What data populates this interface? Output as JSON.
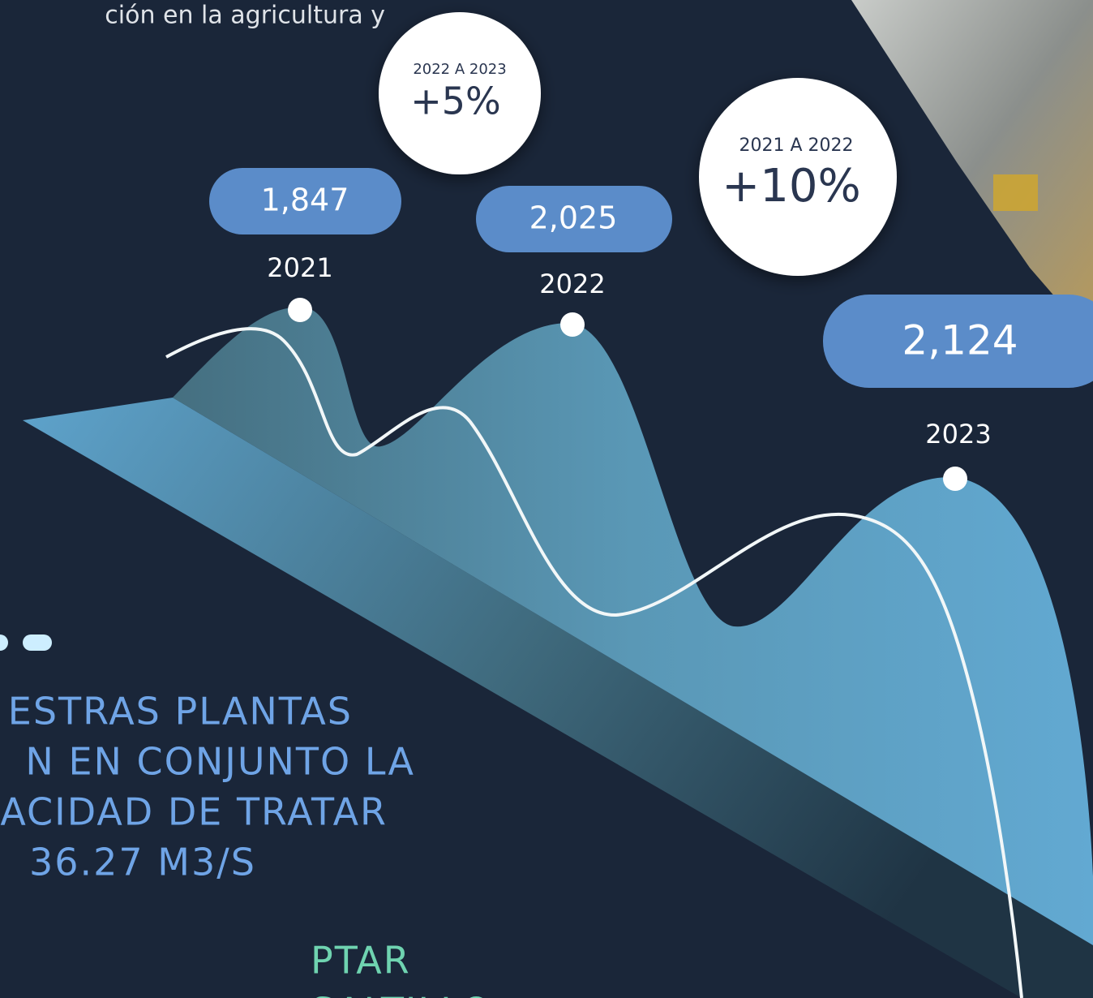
{
  "intro": "ción en la agricultura y",
  "cards": [
    {
      "year": "2021",
      "value": "1,847"
    },
    {
      "year": "2022",
      "value": "2,025"
    },
    {
      "year": "2023",
      "value": "2,124"
    }
  ],
  "growth": [
    {
      "period": "2022 A 2023",
      "change": "+5%"
    },
    {
      "period": "2021 A 2022",
      "change": "+10%"
    }
  ],
  "heading": [
    "ESTRAS PLANTAS",
    "N EN CONJUNTO LA",
    "ACIDAD DE TRATAR",
    "36.27 M3/S"
  ],
  "plant": [
    "PTAR",
    "SALTILLO"
  ]
}
